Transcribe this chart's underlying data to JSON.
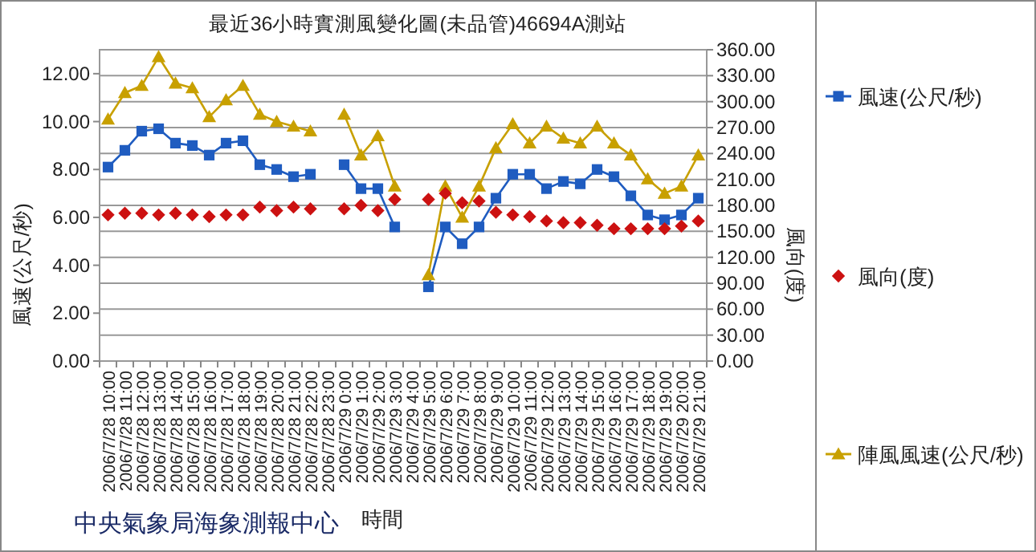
{
  "chart_data": {
    "type": "line",
    "title": "最近36小時實測風變化圖(未品管)46694A測站",
    "xlabel": "時間",
    "ylabel": "風速(公尺/秒)",
    "y2label": "風向(度)",
    "categories": [
      "2006/7/28 10:00",
      "2006/7/28 11:00",
      "2006/7/28 12:00",
      "2006/7/28 13:00",
      "2006/7/28 14:00",
      "2006/7/28 15:00",
      "2006/7/28 16:00",
      "2006/7/28 17:00",
      "2006/7/28 18:00",
      "2006/7/28 19:00",
      "2006/7/28 20:00",
      "2006/7/28 21:00",
      "2006/7/28 22:00",
      "2006/7/28 23:00",
      "2006/7/29 0:00",
      "2006/7/29 1:00",
      "2006/7/29 2:00",
      "2006/7/29 3:00",
      "2006/7/29 4:00",
      "2006/7/29 5:00",
      "2006/7/29 6:00",
      "2006/7/29 7:00",
      "2006/7/29 8:00",
      "2006/7/29 9:00",
      "2006/7/29 10:00",
      "2006/7/29 11:00",
      "2006/7/29 12:00",
      "2006/7/29 13:00",
      "2006/7/29 14:00",
      "2006/7/29 15:00",
      "2006/7/29 16:00",
      "2006/7/29 17:00",
      "2006/7/29 18:00",
      "2006/7/29 19:00",
      "2006/7/29 20:00",
      "2006/7/29 21:00"
    ],
    "series": [
      {
        "name": "風速(公尺/秒)",
        "type": "line",
        "marker": "square",
        "color": "#1f5cc0",
        "values": [
          8.1,
          8.8,
          9.6,
          9.7,
          9.1,
          9.0,
          8.6,
          9.1,
          9.2,
          8.2,
          8.0,
          7.7,
          7.8,
          null,
          8.2,
          7.2,
          7.2,
          5.6,
          null,
          3.1,
          5.6,
          4.9,
          5.6,
          6.8,
          7.8,
          7.8,
          7.2,
          7.5,
          7.4,
          8.0,
          7.7,
          6.9,
          6.1,
          5.9,
          6.1,
          6.8
        ]
      },
      {
        "name": "風向(度)",
        "type": "scatter",
        "axis": "y2",
        "marker": "diamond",
        "color": "#cc1111",
        "values": [
          169,
          171,
          171,
          169,
          171,
          169,
          167,
          169,
          169,
          178,
          174,
          178,
          176,
          null,
          176,
          180,
          174,
          187,
          null,
          187,
          194,
          183,
          185,
          172,
          169,
          167,
          162,
          160,
          160,
          157,
          153,
          153,
          153,
          153,
          156,
          162
        ]
      },
      {
        "name": "陣風風速(公尺/秒)",
        "type": "line",
        "marker": "triangle",
        "color": "#c8a000",
        "values": [
          10.1,
          11.2,
          11.5,
          12.7,
          11.6,
          11.4,
          10.2,
          10.9,
          11.5,
          10.3,
          10.0,
          9.8,
          9.6,
          null,
          10.3,
          8.6,
          9.4,
          7.3,
          null,
          3.6,
          7.3,
          6.0,
          7.3,
          8.9,
          9.9,
          9.1,
          9.8,
          9.3,
          9.1,
          9.8,
          9.1,
          8.6,
          7.6,
          7.0,
          7.3,
          8.6
        ]
      }
    ],
    "ylim": [
      0,
      13
    ],
    "yticks": [
      {
        "value": 0,
        "label": "0.00"
      },
      {
        "value": 2,
        "label": "2.00"
      },
      {
        "value": 4,
        "label": "4.00"
      },
      {
        "value": 6,
        "label": "6.00"
      },
      {
        "value": 8,
        "label": "8.00"
      },
      {
        "value": 10,
        "label": "10.00"
      },
      {
        "value": 12,
        "label": "12.00"
      }
    ],
    "y2lim": [
      0,
      360
    ],
    "y2ticks": [
      {
        "value": 0,
        "label": "0.00"
      },
      {
        "value": 30,
        "label": "30.00"
      },
      {
        "value": 60,
        "label": "60.00"
      },
      {
        "value": 90,
        "label": "90.00"
      },
      {
        "value": 120,
        "label": "120.00"
      },
      {
        "value": 150,
        "label": "150.00"
      },
      {
        "value": 180,
        "label": "180.00"
      },
      {
        "value": 210,
        "label": "210.00"
      },
      {
        "value": 240,
        "label": "240.00"
      },
      {
        "value": 270,
        "label": "270.00"
      },
      {
        "value": 300,
        "label": "300.00"
      },
      {
        "value": 330,
        "label": "330.00"
      },
      {
        "value": 360,
        "label": "360.00"
      }
    ],
    "grid": "y2",
    "legend": "right",
    "line_style": "solid",
    "annotations": [
      "中央氣象局海象測報中心"
    ]
  }
}
